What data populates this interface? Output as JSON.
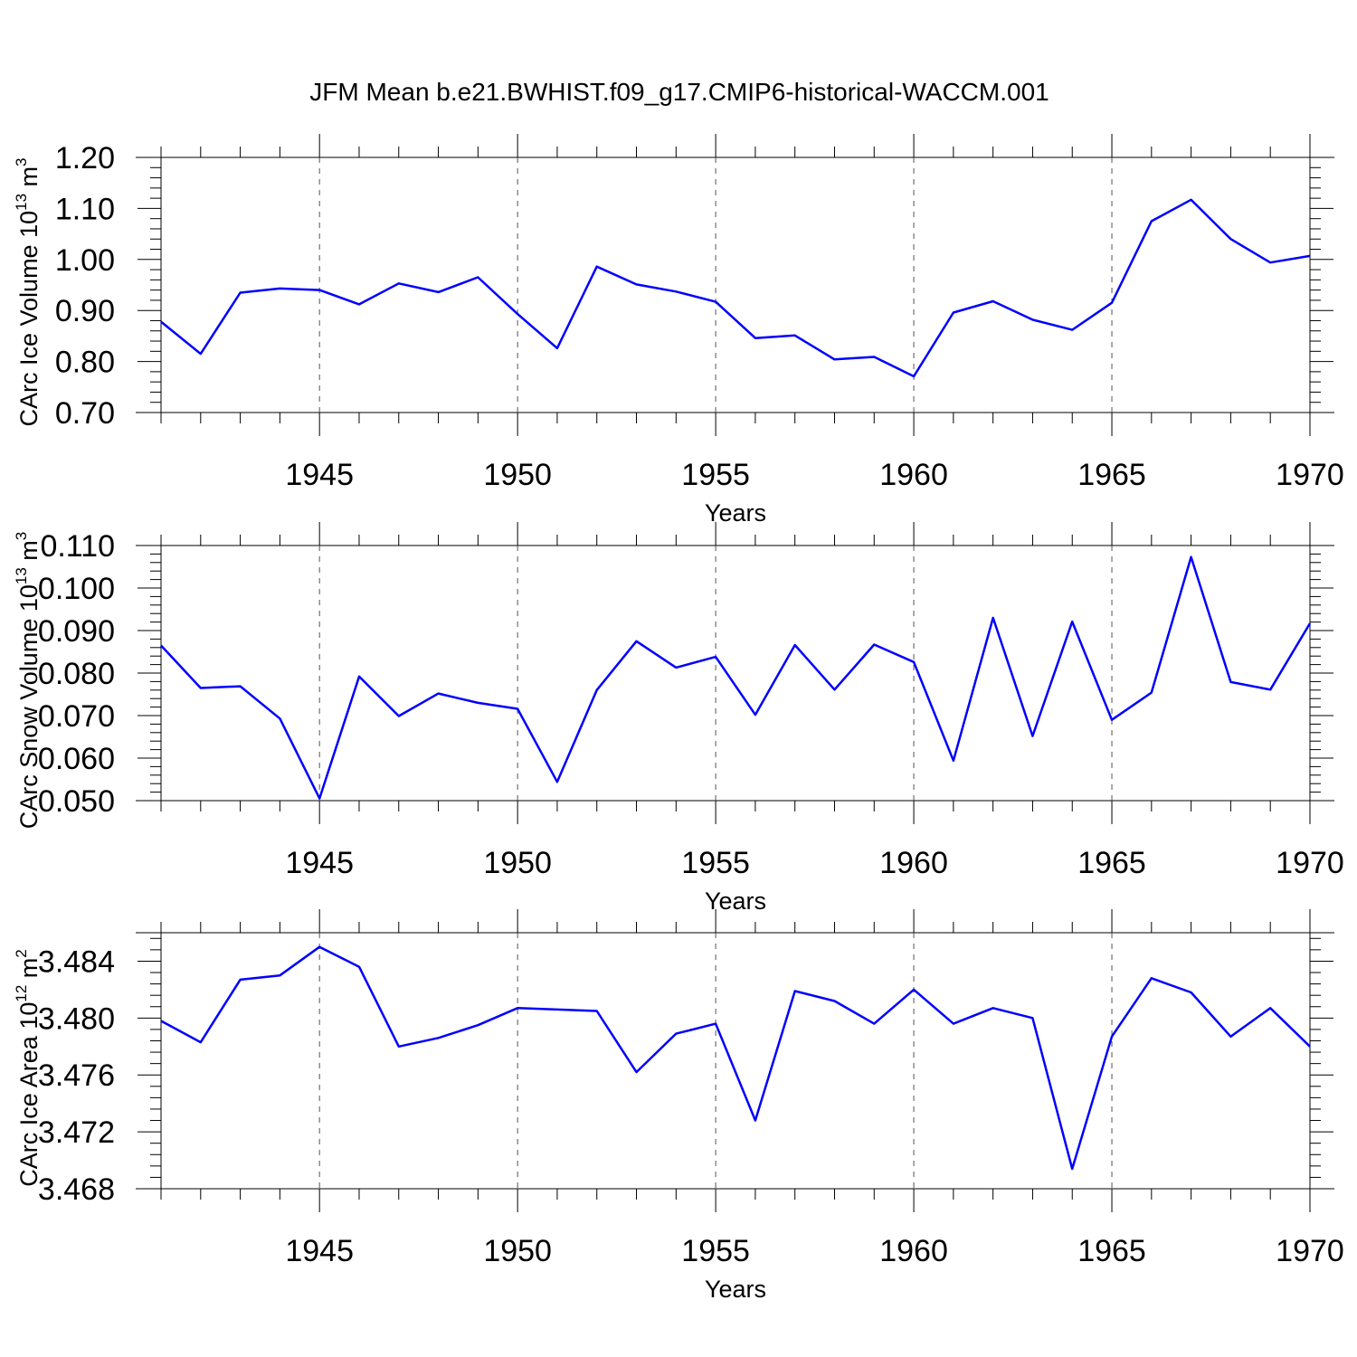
{
  "figure": {
    "title": "JFM Mean b.e21.BWHIST.f09_g17.CMIP6-historical-WACCM.001"
  },
  "colors": {
    "series": "#0000ff",
    "axes": "#000000",
    "grid": "#555555"
  },
  "chart_data": [
    {
      "type": "line",
      "ylabel_main": "CArc Ice Volume 10",
      "ylabel_exp": "13",
      "ylabel_unit": " m",
      "ylabel_unit_exp": "3",
      "xlabel": "Years",
      "xlim": [
        1941,
        1970
      ],
      "ylim": [
        0.7,
        1.2
      ],
      "yticks": [
        0.7,
        0.8,
        0.9,
        1.0,
        1.1,
        1.2
      ],
      "ytick_labels": [
        "0.70",
        "0.80",
        "0.90",
        "1.00",
        "1.10",
        "1.20"
      ],
      "xticks": [
        1945,
        1950,
        1955,
        1960,
        1965,
        1970
      ],
      "xtick_labels": [
        "1945",
        "1950",
        "1955",
        "1960",
        "1965",
        "1970"
      ],
      "grid": "vertical dashed at major x ticks",
      "x": [
        1941,
        1942,
        1943,
        1944,
        1945,
        1946,
        1947,
        1948,
        1949,
        1950,
        1951,
        1952,
        1953,
        1954,
        1955,
        1956,
        1957,
        1958,
        1959,
        1960,
        1961,
        1962,
        1963,
        1964,
        1965,
        1966,
        1967,
        1968,
        1969,
        1970
      ],
      "series": [
        {
          "values": [
            0.878,
            0.815,
            0.935,
            0.943,
            0.94,
            0.912,
            0.953,
            0.936,
            0.965,
            0.893,
            0.826,
            0.986,
            0.951,
            0.937,
            0.917,
            0.846,
            0.851,
            0.804,
            0.809,
            0.771,
            0.896,
            0.918,
            0.882,
            0.862,
            0.915,
            1.075,
            1.117,
            1.04,
            0.994,
            1.007
          ]
        }
      ]
    },
    {
      "type": "line",
      "ylabel_main": "CArc Snow Volume 10",
      "ylabel_exp": "13",
      "ylabel_unit": " m",
      "ylabel_unit_exp": "3",
      "xlabel": "Years",
      "xlim": [
        1941,
        1970
      ],
      "ylim": [
        0.05,
        0.11
      ],
      "yticks": [
        0.05,
        0.06,
        0.07,
        0.08,
        0.09,
        0.1,
        0.11
      ],
      "ytick_labels": [
        "0.050",
        "0.060",
        "0.070",
        "0.080",
        "0.090",
        "0.100",
        "0.110"
      ],
      "xticks": [
        1945,
        1950,
        1955,
        1960,
        1965,
        1970
      ],
      "xtick_labels": [
        "1945",
        "1950",
        "1955",
        "1960",
        "1965",
        "1970"
      ],
      "grid": "vertical dashed at major x ticks",
      "x": [
        1941,
        1942,
        1943,
        1944,
        1945,
        1946,
        1947,
        1948,
        1949,
        1950,
        1951,
        1952,
        1953,
        1954,
        1955,
        1956,
        1957,
        1958,
        1959,
        1960,
        1961,
        1962,
        1963,
        1964,
        1965,
        1966,
        1967,
        1968,
        1969,
        1970
      ],
      "series": [
        {
          "values": [
            0.0865,
            0.0765,
            0.0769,
            0.0693,
            0.0505,
            0.0792,
            0.0699,
            0.0752,
            0.073,
            0.0716,
            0.0544,
            0.076,
            0.0875,
            0.0813,
            0.0838,
            0.0702,
            0.0866,
            0.0761,
            0.0867,
            0.0826,
            0.0594,
            0.093,
            0.0652,
            0.0921,
            0.069,
            0.0754,
            0.1073,
            0.0779,
            0.0761,
            0.0917
          ]
        }
      ]
    },
    {
      "type": "line",
      "ylabel_main": "CArc Ice Area 10",
      "ylabel_exp": "12",
      "ylabel_unit": " m",
      "ylabel_unit_exp": "2",
      "xlabel": "Years",
      "xlim": [
        1941,
        1970
      ],
      "ylim": [
        3.468,
        3.486
      ],
      "yticks": [
        3.468,
        3.472,
        3.476,
        3.48,
        3.484
      ],
      "ytick_labels": [
        "3.468",
        "3.472",
        "3.476",
        "3.480",
        "3.484"
      ],
      "xticks": [
        1945,
        1950,
        1955,
        1960,
        1965,
        1970
      ],
      "xtick_labels": [
        "1945",
        "1950",
        "1955",
        "1960",
        "1965",
        "1970"
      ],
      "grid": "vertical dashed at major x ticks",
      "x": [
        1941,
        1942,
        1943,
        1944,
        1945,
        1946,
        1947,
        1948,
        1949,
        1950,
        1951,
        1952,
        1953,
        1954,
        1955,
        1956,
        1957,
        1958,
        1959,
        1960,
        1961,
        1962,
        1963,
        1964,
        1965,
        1966,
        1967,
        1968,
        1969,
        1970
      ],
      "series": [
        {
          "values": [
            3.4798,
            3.4783,
            3.4827,
            3.483,
            3.485,
            3.4836,
            3.478,
            3.4786,
            3.4795,
            3.4807,
            3.4806,
            3.4805,
            3.4762,
            3.4789,
            3.4796,
            3.4728,
            3.4819,
            3.4812,
            3.4796,
            3.482,
            3.4796,
            3.4807,
            3.48,
            3.4694,
            3.4787,
            3.4828,
            3.4818,
            3.4787,
            3.4807,
            3.478
          ]
        }
      ]
    }
  ]
}
